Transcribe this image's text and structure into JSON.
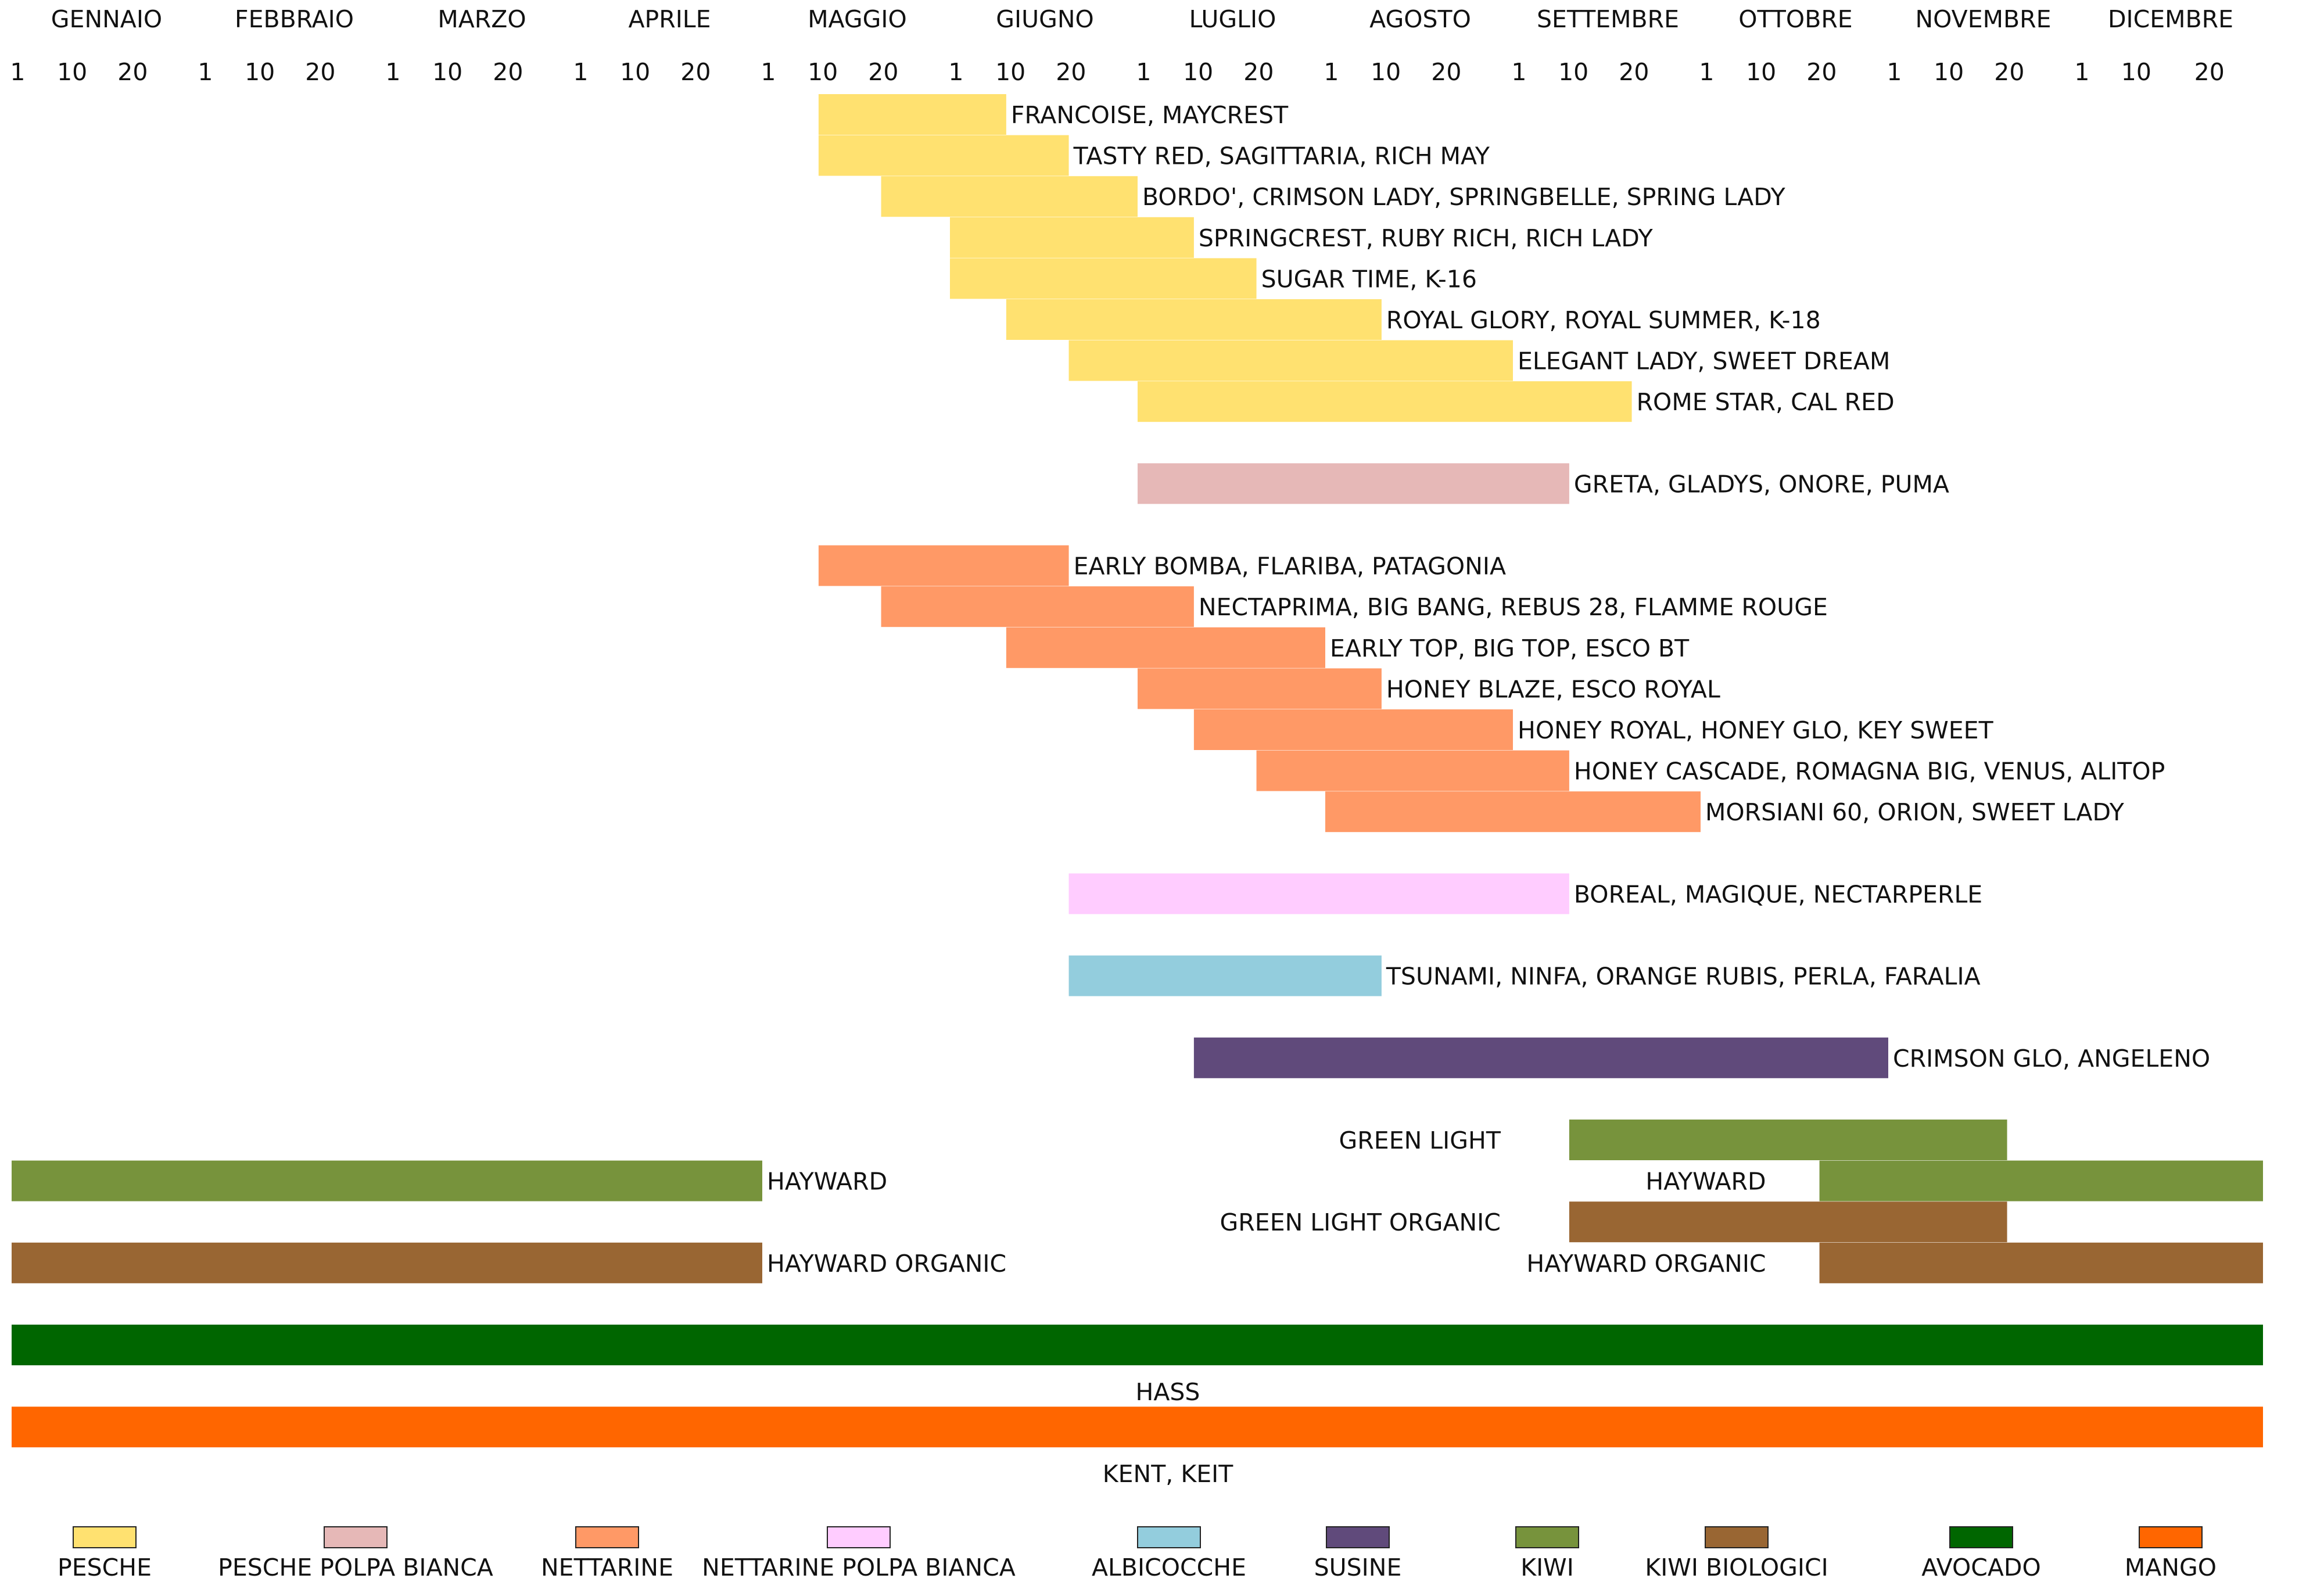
{
  "chart_data": {
    "type": "gantt",
    "months": [
      "GENNAIO",
      "FEBBRAIO",
      "MARZO",
      "APRILE",
      "MAGGIO",
      "GIUGNO",
      "LUGLIO",
      "AGOSTO",
      "SETTEMBRE",
      "OTTOBRE",
      "NOVEMBRE",
      "DICEMBRE"
    ],
    "day_ticks": [
      "1",
      "10",
      "20"
    ],
    "categories": [
      {
        "name": "PESCHE",
        "color": "#FFE170"
      },
      {
        "name": "PESCHE POLPA BIANCA",
        "color": "#E6B8B7"
      },
      {
        "name": "NETTARINE",
        "color": "#FF9966"
      },
      {
        "name": "NETTARINE POLPA BIANCA",
        "color": "#FFCCFF"
      },
      {
        "name": "ALBICOCCHE",
        "color": "#93CDDD"
      },
      {
        "name": "SUSINE",
        "color": "#604A7B"
      },
      {
        "name": "KIWI",
        "color": "#77933C"
      },
      {
        "name": "KIWI BIOLOGICI",
        "color": "#996633"
      },
      {
        "name": "AVOCADO",
        "color": "#006600"
      },
      {
        "name": "MANGO",
        "color": "#FF6600"
      }
    ],
    "rows": [
      {
        "category": 0,
        "label": "FRANCOISE, MAYCREST",
        "periods": [
          [
            "05-10",
            "06-10"
          ]
        ],
        "label_pos": "right"
      },
      {
        "category": 0,
        "label": "TASTY RED, SAGITTARIA, RICH MAY",
        "periods": [
          [
            "05-10",
            "06-20"
          ]
        ],
        "label_pos": "right"
      },
      {
        "category": 0,
        "label": "BORDO', CRIMSON LADY, SPRINGBELLE, SPRING LADY",
        "periods": [
          [
            "05-20",
            "07-01"
          ]
        ],
        "label_pos": "right"
      },
      {
        "category": 0,
        "label": "SPRINGCREST, RUBY RICH, RICH LADY",
        "periods": [
          [
            "06-01",
            "07-10"
          ]
        ],
        "label_pos": "right"
      },
      {
        "category": 0,
        "label": "SUGAR TIME, K-16",
        "periods": [
          [
            "06-01",
            "07-20"
          ]
        ],
        "label_pos": "right"
      },
      {
        "category": 0,
        "label": "ROYAL GLORY, ROYAL SUMMER, K-18",
        "periods": [
          [
            "06-10",
            "08-10"
          ]
        ],
        "label_pos": "right"
      },
      {
        "category": 0,
        "label": "ELEGANT LADY, SWEET DREAM",
        "periods": [
          [
            "06-20",
            "08-30"
          ]
        ],
        "label_pos": "right"
      },
      {
        "category": 0,
        "label": "ROME STAR, CAL RED",
        "periods": [
          [
            "07-01",
            "09-20"
          ]
        ],
        "label_pos": "right"
      },
      {
        "gap": true
      },
      {
        "category": 1,
        "label": "GRETA, GLADYS, ONORE, PUMA",
        "periods": [
          [
            "07-01",
            "09-10"
          ]
        ],
        "label_pos": "right"
      },
      {
        "gap": true
      },
      {
        "category": 2,
        "label": "EARLY BOMBA, FLARIBA, PATAGONIA",
        "periods": [
          [
            "05-10",
            "06-20"
          ]
        ],
        "label_pos": "right"
      },
      {
        "category": 2,
        "label": "NECTAPRIMA, BIG BANG, REBUS 28, FLAMME ROUGE",
        "periods": [
          [
            "05-20",
            "07-10"
          ]
        ],
        "label_pos": "right"
      },
      {
        "category": 2,
        "label": "EARLY TOP, BIG TOP, ESCO BT",
        "periods": [
          [
            "06-10",
            "08-01"
          ]
        ],
        "label_pos": "right"
      },
      {
        "category": 2,
        "label": "HONEY BLAZE, ESCO ROYAL",
        "periods": [
          [
            "07-01",
            "08-10"
          ]
        ],
        "label_pos": "right"
      },
      {
        "category": 2,
        "label": "HONEY ROYAL, HONEY GLO, KEY SWEET",
        "periods": [
          [
            "07-10",
            "08-30"
          ]
        ],
        "label_pos": "right"
      },
      {
        "category": 2,
        "label": "HONEY CASCADE, ROMAGNA BIG, VENUS, ALITOP",
        "periods": [
          [
            "07-20",
            "09-10"
          ]
        ],
        "label_pos": "right"
      },
      {
        "category": 2,
        "label": "MORSIANI 60, ORION, SWEET LADY",
        "periods": [
          [
            "08-01",
            "09-30"
          ]
        ],
        "label_pos": "right"
      },
      {
        "gap": true
      },
      {
        "category": 3,
        "label": "BOREAL, MAGIQUE, NECTARPERLE",
        "periods": [
          [
            "06-20",
            "09-10"
          ]
        ],
        "label_pos": "right"
      },
      {
        "gap": true
      },
      {
        "category": 4,
        "label": "TSUNAMI, NINFA, ORANGE RUBIS,  PERLA, FARALIA",
        "periods": [
          [
            "06-20",
            "08-10"
          ]
        ],
        "label_pos": "right"
      },
      {
        "gap": true
      },
      {
        "category": 5,
        "label": "CRIMSON GLO, ANGELENO",
        "periods": [
          [
            "07-10",
            "10-30"
          ]
        ],
        "label_pos": "right"
      },
      {
        "gap": true
      },
      {
        "category": 6,
        "label": "GREEN LIGHT",
        "periods": [
          [
            "09-10",
            "11-20"
          ]
        ],
        "label_pos": "left"
      },
      {
        "category": 6,
        "label": "HAYWARD",
        "periods": [
          [
            "01-01",
            "04-30"
          ]
        ],
        "label_pos": "right",
        "extra_periods": [
          [
            "10-20",
            "12-31"
          ]
        ],
        "extra_label": "HAYWARD"
      },
      {
        "category": 7,
        "label": "GREEN LIGHT ORGANIC",
        "periods": [
          [
            "09-10",
            "11-20"
          ]
        ],
        "label_pos": "left"
      },
      {
        "category": 7,
        "label": "HAYWARD ORGANIC",
        "periods": [
          [
            "01-01",
            "04-30"
          ]
        ],
        "label_pos": "right",
        "extra_periods": [
          [
            "10-20",
            "12-31"
          ]
        ],
        "extra_label": "HAYWARD ORGANIC"
      },
      {
        "gap": true
      },
      {
        "category": 8,
        "label": "HASS",
        "periods": [
          [
            "01-01",
            "12-31"
          ]
        ],
        "label_pos": "below"
      },
      {
        "category": 9,
        "label": "KENT, KEIT",
        "periods": [
          [
            "01-01",
            "12-31"
          ]
        ],
        "label_pos": "below"
      }
    ]
  }
}
